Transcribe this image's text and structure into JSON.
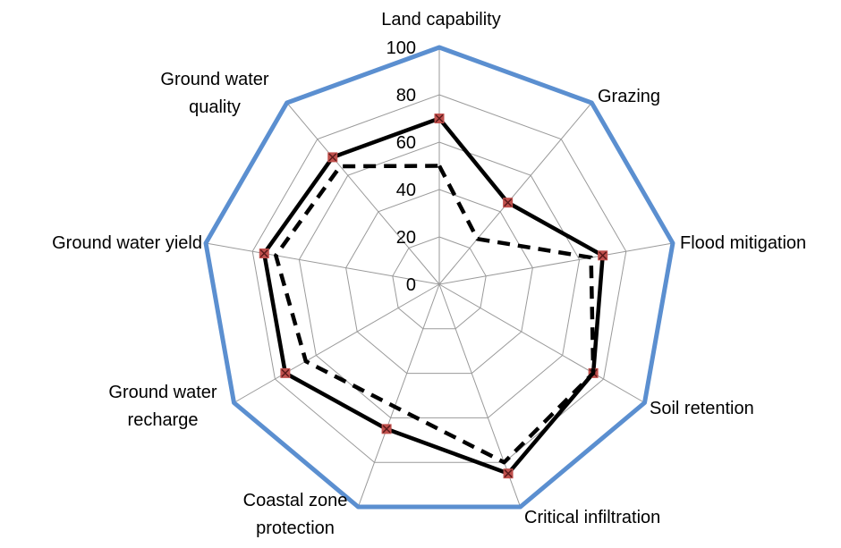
{
  "chart_data": {
    "type": "radar",
    "title": "",
    "categories": [
      [
        "Land capability"
      ],
      [
        "Grazing"
      ],
      [
        "Flood mitigation"
      ],
      [
        "Soil retention"
      ],
      [
        "Critical infiltration"
      ],
      [
        "Coastal zone",
        "protection"
      ],
      [
        "Ground water",
        "recharge"
      ],
      [
        "Ground water yield"
      ],
      [
        "Ground water",
        "quality"
      ]
    ],
    "rlim": [
      0,
      100
    ],
    "ticks": [
      "0",
      "20",
      "40",
      "60",
      "80",
      "100"
    ],
    "tick_values": [
      0,
      20,
      40,
      60,
      80,
      100
    ],
    "grid": true,
    "legend": "none",
    "series": [
      {
        "style": "solid",
        "color": "#5b8fd0",
        "marker": "none",
        "values": [
          100,
          100,
          100,
          100,
          100,
          100,
          100,
          100,
          100
        ]
      },
      {
        "style": "solid",
        "color": "#000000",
        "marker": "x",
        "marker_color": "#c0504d",
        "values": [
          70,
          45,
          70,
          75,
          85,
          65,
          75,
          75,
          70
        ]
      },
      {
        "style": "dashed",
        "color": "#000000",
        "marker": "none",
        "values": [
          50,
          25,
          65,
          75,
          80,
          55,
          65,
          70,
          65
        ]
      }
    ]
  }
}
